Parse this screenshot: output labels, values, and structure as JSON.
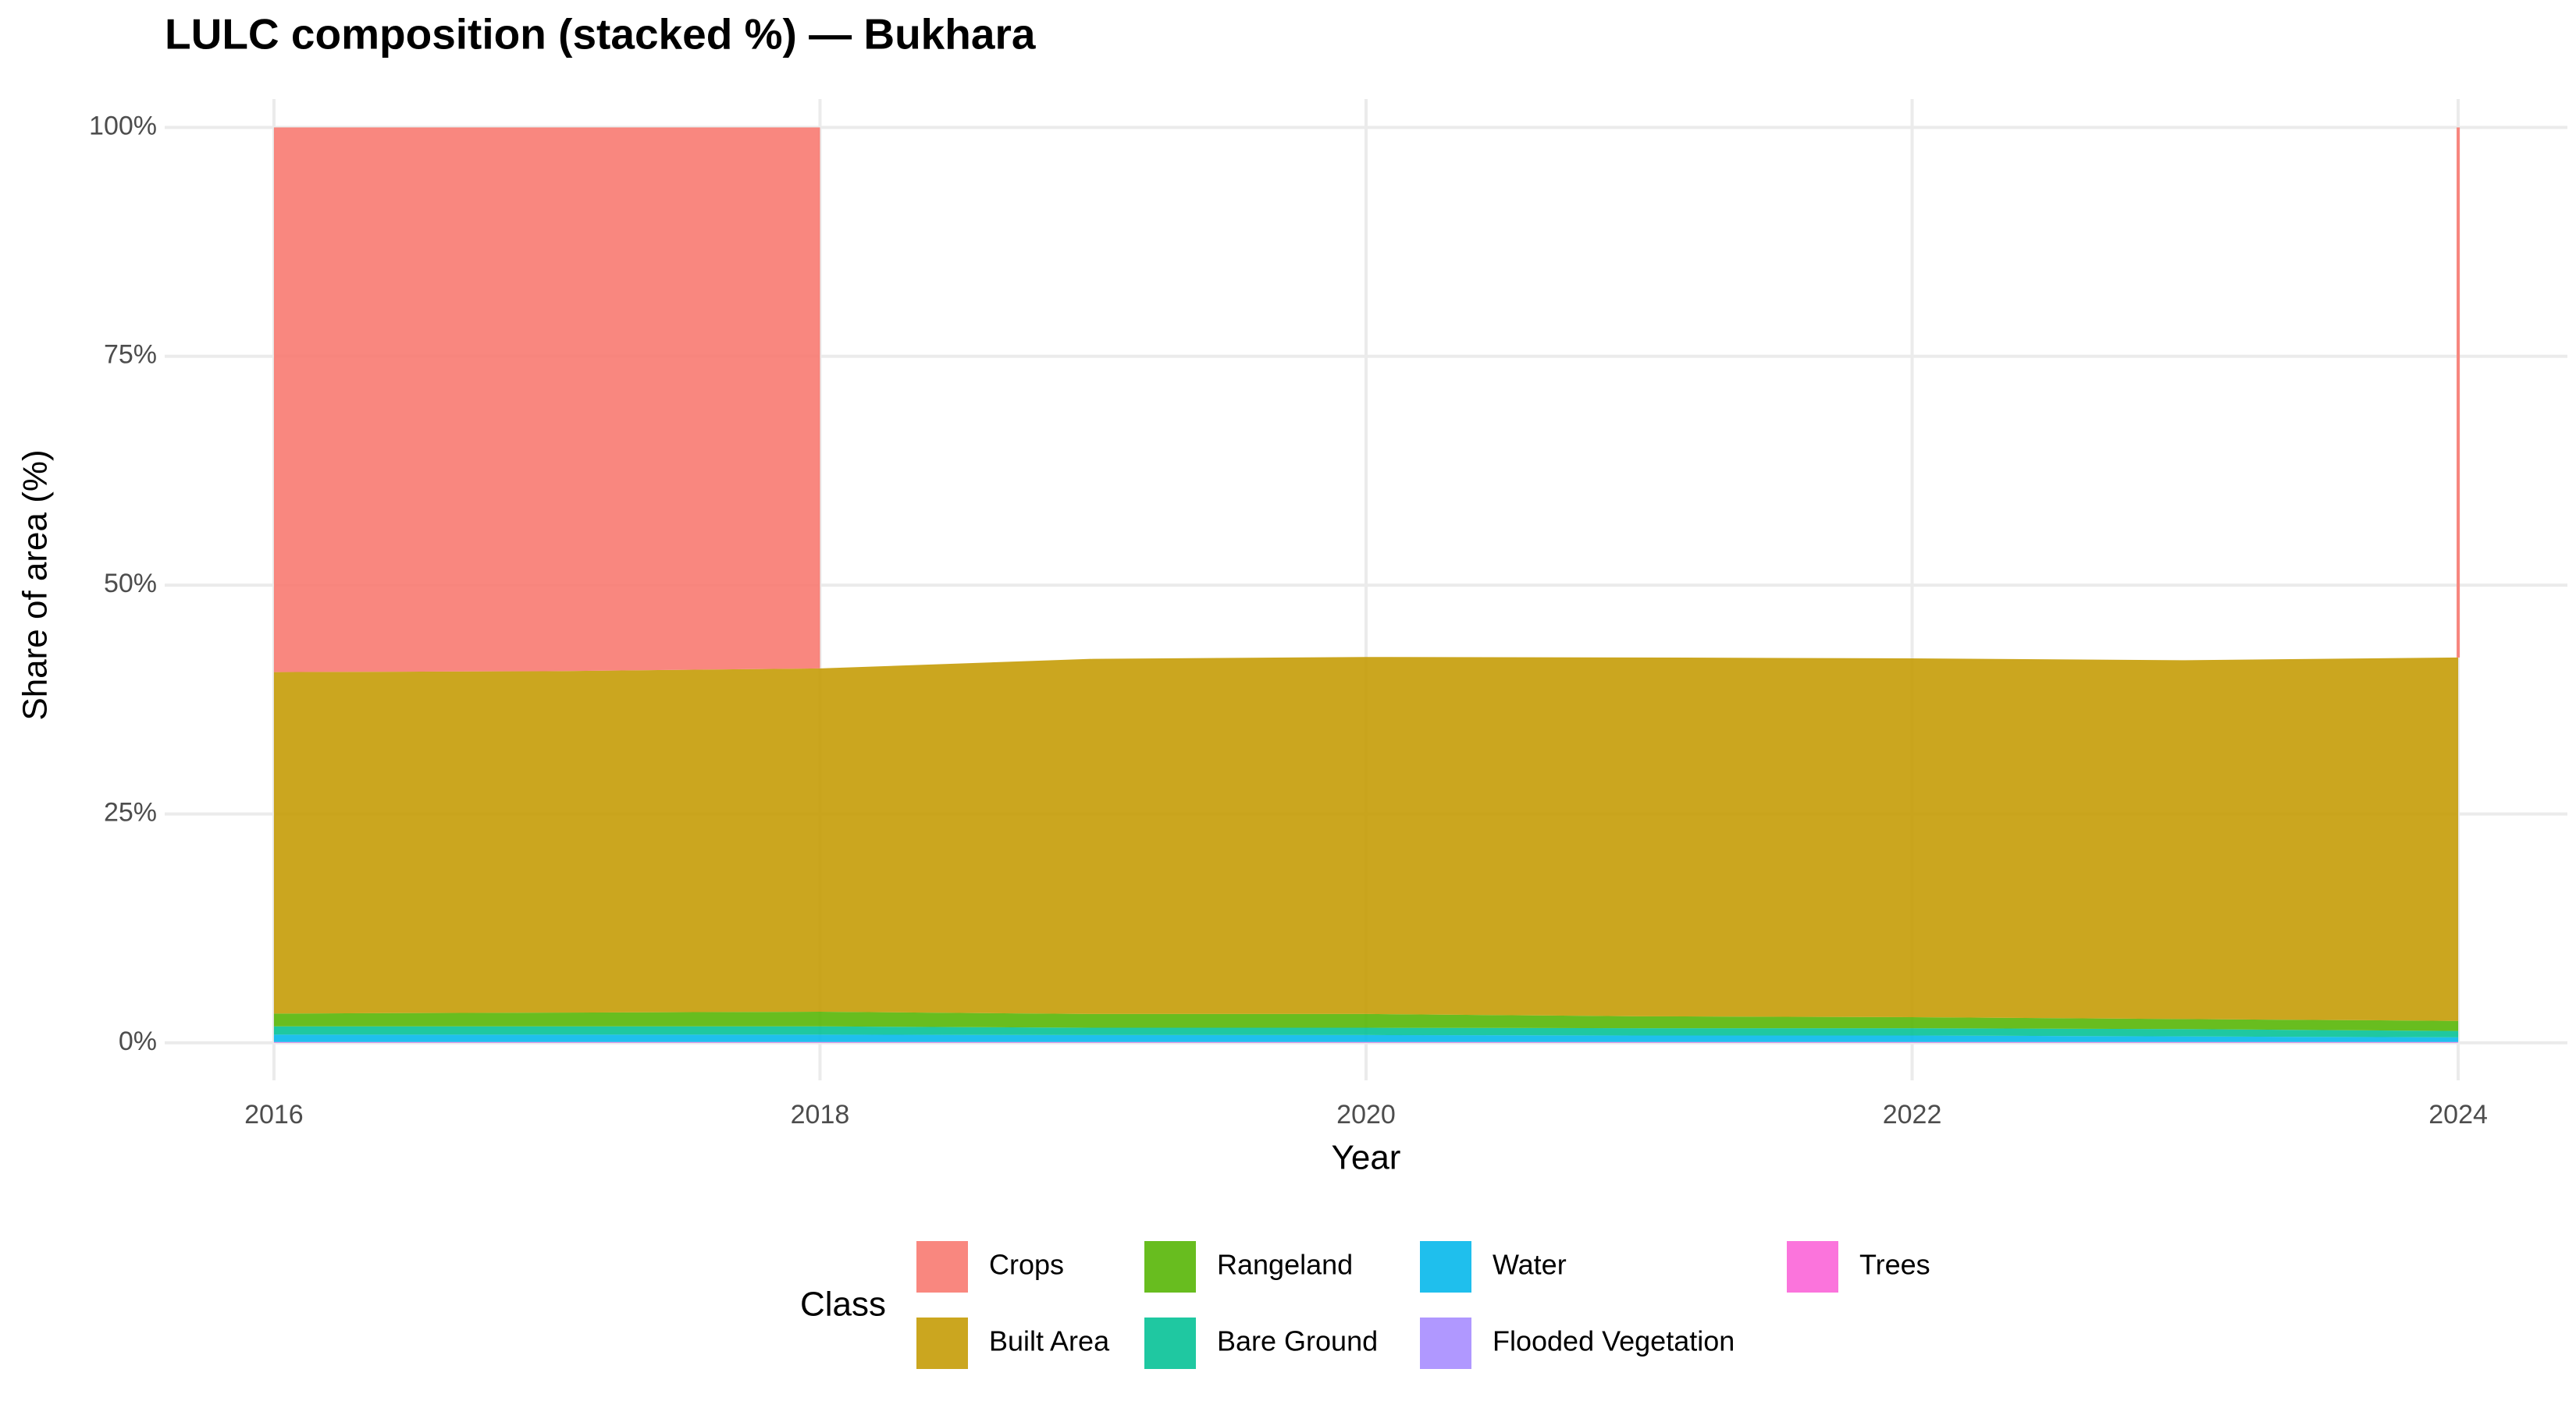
{
  "chart_data": {
    "type": "stacked_area",
    "title": "LULC composition (stacked %) — Bukhara",
    "x_label": "Year",
    "y_label": "Share of area (%)",
    "x": [
      2016,
      2017,
      2018,
      2019,
      2020,
      2021,
      2022,
      2023,
      2024
    ],
    "series": [
      {
        "name": "Crops",
        "color": "#F8766D",
        "values": [
          59.5,
          59.4,
          59.1,
          null,
          null,
          null,
          null,
          null,
          57.9
        ]
      },
      {
        "name": "Built Area",
        "color": "#C49A00",
        "values": [
          37.3,
          37.3,
          37.5,
          38.8,
          39.0,
          39.2,
          39.2,
          39.2,
          39.7
        ]
      },
      {
        "name": "Rangeland",
        "color": "#53B400",
        "values": [
          1.4,
          1.5,
          1.6,
          1.5,
          1.5,
          1.3,
          1.2,
          1.1,
          1.1
        ]
      },
      {
        "name": "Bare Ground",
        "color": "#00C094",
        "values": [
          0.9,
          0.9,
          0.9,
          0.8,
          0.8,
          0.8,
          0.8,
          0.8,
          0.7
        ]
      },
      {
        "name": "Water",
        "color": "#00B6EB",
        "values": [
          0.8,
          0.8,
          0.8,
          0.75,
          0.75,
          0.7,
          0.7,
          0.6,
          0.5
        ]
      },
      {
        "name": "Flooded Vegetation",
        "color": "#A58AFF",
        "values": [
          0.05,
          0.05,
          0.05,
          0.05,
          0.05,
          0.05,
          0.05,
          0.05,
          0.05
        ]
      },
      {
        "name": "Trees",
        "color": "#FB61D7",
        "values": [
          0.05,
          0.05,
          0.05,
          0.05,
          0.05,
          0.05,
          0.05,
          0.05,
          0.05
        ]
      }
    ],
    "legend_title": "Class",
    "legend_position": "bottom",
    "xlim": [
      2015.6,
      2024.4
    ],
    "xticks": [
      2016,
      2018,
      2020,
      2022,
      2024
    ],
    "ylim": [
      -4.1,
      103.1
    ],
    "yticks": [
      {
        "value": 0,
        "label": "0%"
      },
      {
        "value": 25,
        "label": "25%"
      },
      {
        "value": 50,
        "label": "50%"
      },
      {
        "value": 75,
        "label": "75%"
      },
      {
        "value": 100,
        "label": "100%"
      }
    ],
    "grid": true
  }
}
